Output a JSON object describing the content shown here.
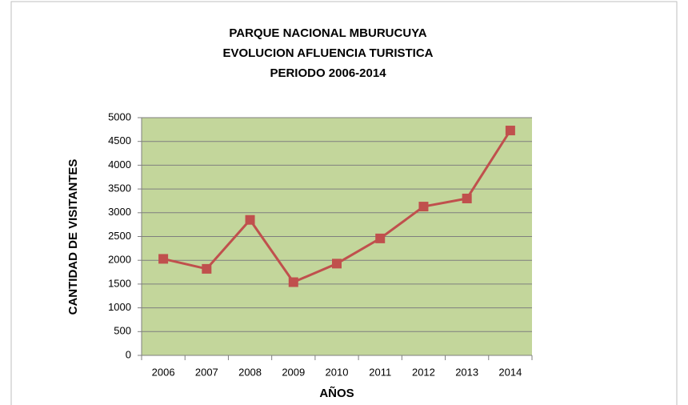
{
  "chart_data": {
    "type": "line",
    "title": [
      "PARQUE NACIONAL MBURUCUYA",
      "EVOLUCION AFLUENCIA TURISTICA",
      "PERIODO 2006-2014"
    ],
    "xlabel": "AÑOS",
    "ylabel": "CANTIDAD DE VISITANTES",
    "categories": [
      "2006",
      "2007",
      "2008",
      "2009",
      "2010",
      "2011",
      "2012",
      "2013",
      "2014"
    ],
    "series": [
      {
        "color": "#c0504d",
        "values": [
          2030,
          1820,
          2850,
          1540,
          1930,
          2460,
          3130,
          3300,
          4730
        ]
      }
    ],
    "ylim": [
      0,
      5000
    ],
    "yticks": [
      0,
      500,
      1000,
      1500,
      2000,
      2500,
      3000,
      3500,
      4000,
      4500,
      5000
    ],
    "grid": true,
    "plot_background": "#c3d69b"
  }
}
